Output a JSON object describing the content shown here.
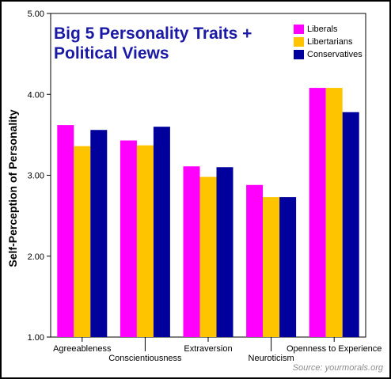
{
  "chart_data": {
    "type": "bar",
    "title_lines": [
      "Big 5 Personality Traits +",
      "Political Views"
    ],
    "ylabel": "Self-Perception of Personality",
    "xlabel": "",
    "ylim": [
      1.0,
      5.0
    ],
    "yticks": [
      "1.00",
      "2.00",
      "3.00",
      "4.00",
      "5.00"
    ],
    "categories": [
      "Agreeableness",
      "Conscientiousness",
      "Extraversion",
      "Neuroticism",
      "Openness to Experience"
    ],
    "series": [
      {
        "name": "Liberals",
        "color": "#ff00ff",
        "values": [
          3.62,
          3.43,
          3.11,
          2.88,
          4.08
        ]
      },
      {
        "name": "Libertarians",
        "color": "#ffc400",
        "values": [
          3.36,
          3.37,
          2.98,
          2.73,
          4.08
        ]
      },
      {
        "name": "Conservatives",
        "color": "#00009c",
        "values": [
          3.56,
          3.6,
          3.1,
          2.73,
          3.78
        ]
      }
    ],
    "grid": false,
    "legend_position": "top-right"
  },
  "source_text": "Source: yourmorals.org"
}
